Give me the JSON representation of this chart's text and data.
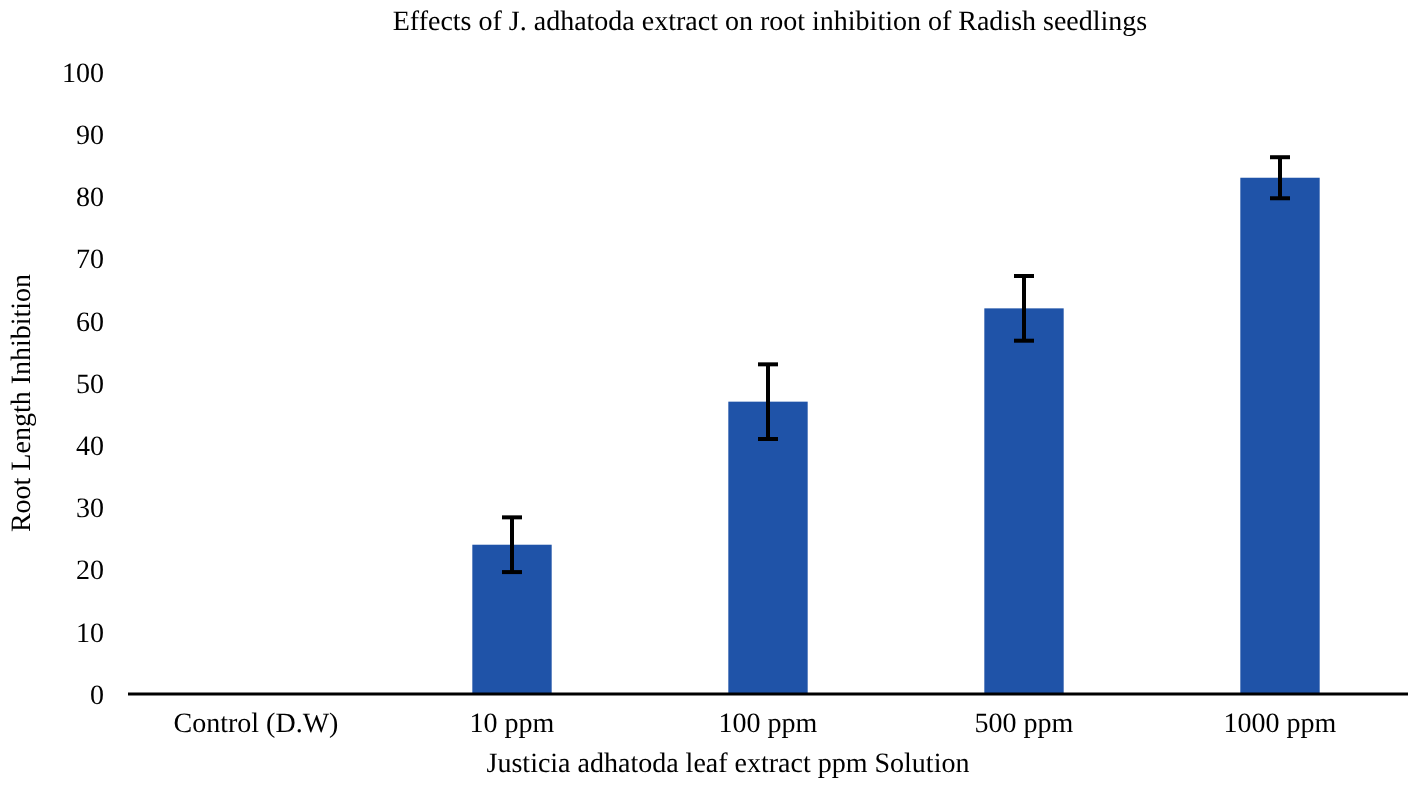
{
  "chart_data": {
    "type": "bar",
    "title": "Effects of J. adhatoda extract on root inhibition of Radish seedlings",
    "xlabel": "Justicia adhatoda leaf extract ppm Solution",
    "ylabel": "Root Length Inhibition",
    "categories": [
      "Control (D.W)",
      "10 ppm",
      "100 ppm",
      "500 ppm",
      "1000 ppm"
    ],
    "values": [
      0,
      24,
      47,
      62,
      83
    ],
    "errors": [
      null,
      4.4,
      6,
      5.2,
      3.3
    ],
    "color": "#1f53a8",
    "ylim": [
      0,
      100
    ],
    "yticks": [
      0,
      10,
      20,
      30,
      40,
      50,
      60,
      70,
      80,
      90,
      100
    ],
    "grid": false
  }
}
